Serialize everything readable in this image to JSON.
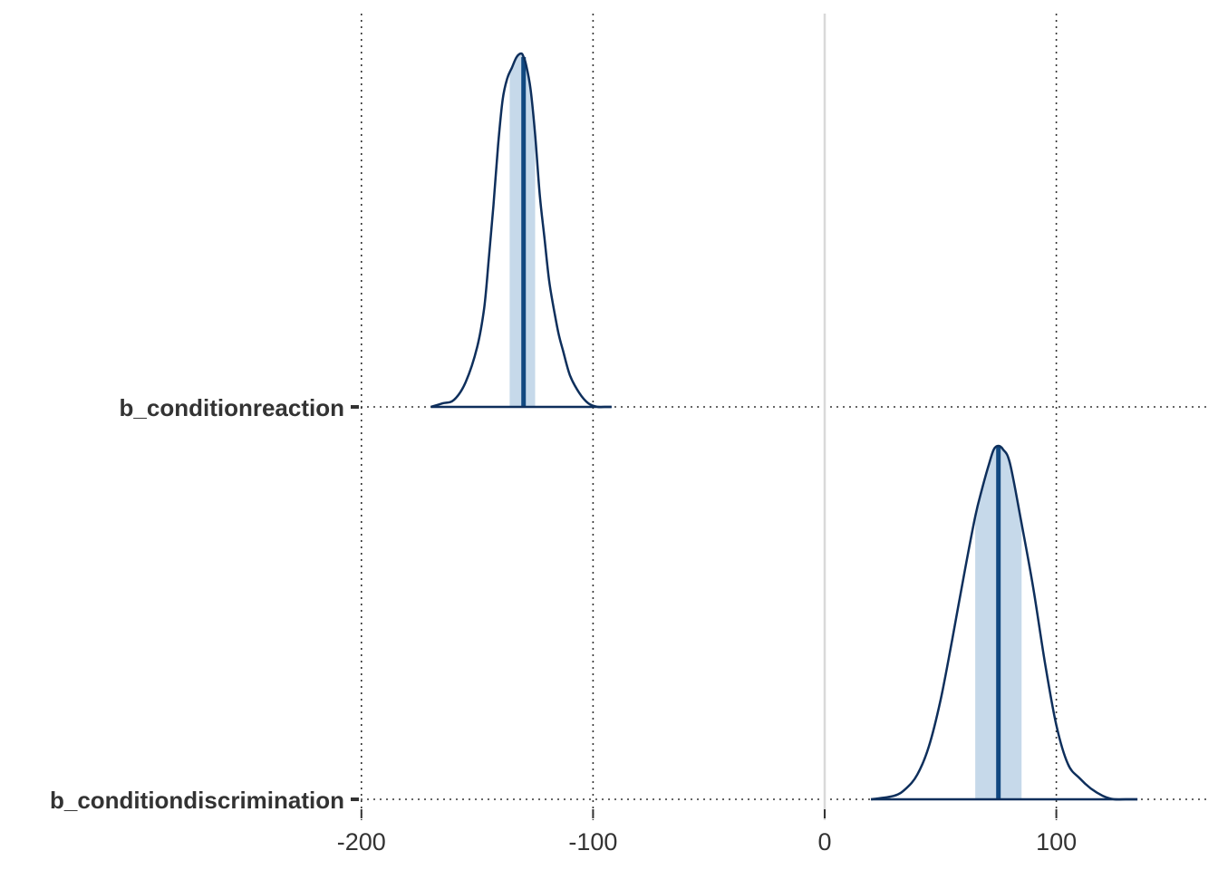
{
  "chart_data": {
    "type": "area",
    "title": "",
    "xlabel": "",
    "ylabel": "",
    "xlim": [
      -200,
      160
    ],
    "x_ticks": [
      -200,
      -100,
      0,
      100
    ],
    "x_tick_labels": [
      "-200",
      "-100",
      "0",
      "100"
    ],
    "reference_line_x": 0,
    "grid": "dotted",
    "categories": [
      "b_conditionreaction",
      "b_conditiondiscrimination"
    ],
    "series": [
      {
        "label": "b_conditionreaction",
        "median": -130,
        "inner_interval": [
          -136,
          -125
        ],
        "range": [
          -170,
          -92
        ],
        "density_x": [
          -170,
          -165,
          -160,
          -155,
          -150,
          -147,
          -145,
          -143,
          -141,
          -139,
          -137,
          -135,
          -133,
          -131,
          -130,
          -129,
          -127,
          -125,
          -123,
          -121,
          -119,
          -117,
          -115,
          -113,
          -110,
          -106,
          -102,
          -98,
          -95,
          -92
        ],
        "density_y": [
          0.0,
          0.01,
          0.02,
          0.07,
          0.17,
          0.28,
          0.42,
          0.57,
          0.74,
          0.87,
          0.93,
          0.96,
          0.99,
          1.0,
          0.99,
          0.97,
          0.9,
          0.77,
          0.6,
          0.48,
          0.36,
          0.28,
          0.21,
          0.16,
          0.09,
          0.04,
          0.01,
          0.0,
          0.0,
          0.0
        ]
      },
      {
        "label": "b_conditiondiscrimination",
        "median": 75,
        "inner_interval": [
          65,
          85
        ],
        "range": [
          20,
          135
        ],
        "density_x": [
          20,
          30,
          35,
          40,
          45,
          50,
          55,
          60,
          65,
          68,
          71,
          73,
          75,
          77,
          80,
          85,
          90,
          95,
          100,
          105,
          110,
          115,
          120,
          125,
          130,
          135
        ],
        "density_y": [
          0.0,
          0.01,
          0.03,
          0.07,
          0.15,
          0.28,
          0.45,
          0.63,
          0.8,
          0.88,
          0.95,
          0.99,
          1.0,
          0.99,
          0.95,
          0.78,
          0.6,
          0.39,
          0.21,
          0.1,
          0.06,
          0.03,
          0.01,
          0.0,
          0.0,
          0.0
        ]
      }
    ],
    "colors": {
      "outline": "#0e2f5c",
      "median": "#114880",
      "interval_fill": "#c6d9ea",
      "zero_line": "#d9d9d9",
      "grid": "#333333",
      "text": "#333333"
    }
  }
}
